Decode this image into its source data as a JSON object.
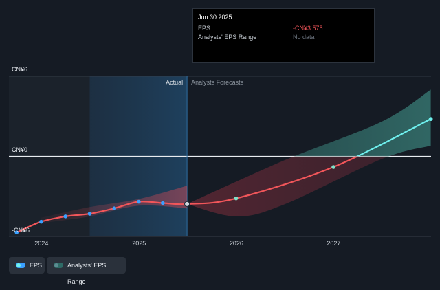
{
  "chart_data": {
    "type": "line",
    "y_axis": {
      "ticks": [
        {
          "label": "CN¥6",
          "value": 6
        },
        {
          "label": "CN¥0",
          "value": 0
        },
        {
          "label": "-CN¥6",
          "value": -6
        }
      ],
      "ylim": [
        -6,
        6
      ]
    },
    "x_axis": {
      "ticks": [
        "2024",
        "2025",
        "2026",
        "2027"
      ],
      "xlim": [
        "2023-09-01",
        "2028-01-01"
      ]
    },
    "regions": {
      "actual_label": "Actual",
      "forecast_label": "Analysts Forecasts",
      "divider_date": "2025-06-30"
    },
    "series": [
      {
        "name": "EPS",
        "color": "#f2565a",
        "positive_color": "#6ff0ee",
        "actual_points": [
          {
            "x": "2023-09-30",
            "y": -5.7
          },
          {
            "x": "2023-12-31",
            "y": -4.9
          },
          {
            "x": "2024-03-31",
            "y": -4.5
          },
          {
            "x": "2024-06-30",
            "y": -4.3
          },
          {
            "x": "2024-09-30",
            "y": -3.9
          },
          {
            "x": "2024-12-31",
            "y": -3.4
          },
          {
            "x": "2025-03-31",
            "y": -3.5
          },
          {
            "x": "2025-06-30",
            "y": -3.575
          }
        ],
        "forecast_points": [
          {
            "x": "2025-06-30",
            "y": -3.575
          },
          {
            "x": "2025-12-31",
            "y": -3.15
          },
          {
            "x": "2026-12-31",
            "y": -0.8
          },
          {
            "x": "2027-12-31",
            "y": 2.8
          }
        ]
      },
      {
        "name": "Analysts' EPS Range",
        "color": "#2e6b66",
        "upper": [
          {
            "x": "2025-06-30",
            "y": -3.575
          },
          {
            "x": "2026-06-30",
            "y": -0.3
          },
          {
            "x": "2027-06-30",
            "y": 2.6
          },
          {
            "x": "2027-12-31",
            "y": 5.0
          }
        ],
        "lower": [
          {
            "x": "2025-06-30",
            "y": -3.575
          },
          {
            "x": "2025-12-31",
            "y": -4.5
          },
          {
            "x": "2026-06-30",
            "y": -3.6
          },
          {
            "x": "2027-06-30",
            "y": -0.2
          },
          {
            "x": "2027-12-31",
            "y": 0.8
          }
        ]
      }
    ],
    "past_band": {
      "upper": [
        {
          "x": "2023-12-31",
          "y": -4.6
        },
        {
          "x": "2024-06-30",
          "y": -3.8
        },
        {
          "x": "2024-12-31",
          "y": -3.2
        },
        {
          "x": "2025-06-30",
          "y": -2.2
        }
      ],
      "lower": [
        {
          "x": "2023-12-31",
          "y": -5.0
        },
        {
          "x": "2024-06-30",
          "y": -4.5
        },
        {
          "x": "2024-12-31",
          "y": -3.7
        },
        {
          "x": "2025-06-30",
          "y": -3.9
        }
      ]
    },
    "grid": true,
    "legend_position": "bottom-left"
  },
  "tooltip": {
    "date": "Jun 30 2025",
    "rows": [
      {
        "label": "EPS",
        "value": "-CN¥3.575"
      },
      {
        "label": "Analysts' EPS Range",
        "value": "No data"
      }
    ]
  },
  "legend": [
    {
      "label": "EPS",
      "color": "#3aa0ff",
      "dot_color": "#6ff0ee"
    },
    {
      "label": "Analysts' EPS Range",
      "color": "#2e6b66",
      "dot_color": "#5c8c92"
    }
  ]
}
